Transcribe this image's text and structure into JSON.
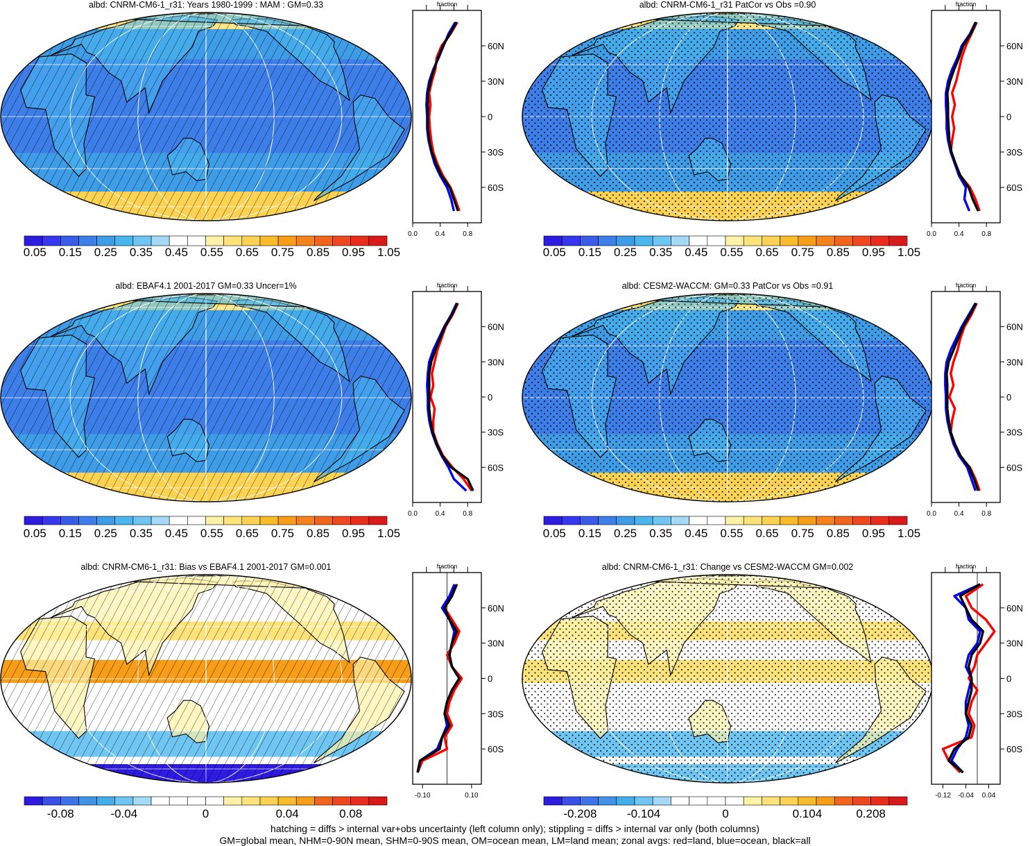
{
  "panels": [
    {
      "title": "albd: CNRM-CM6-1_r31: Years 1980-1999 : MAM : GM=0.33",
      "kind": "abs",
      "overlay": "hatch",
      "colorbar": [
        "0.05",
        "0.15",
        "0.25",
        "0.35",
        "0.45",
        "0.55",
        "0.65",
        "0.75",
        "0.85",
        "0.95",
        "1.05"
      ],
      "zonal": {
        "xlabel": "fraction",
        "xticks": [
          "0.0",
          "0.4",
          "0.8"
        ],
        "xlim": [
          0,
          1
        ],
        "lat_labels": [
          "60N",
          "30N",
          "0",
          "30S",
          "60S"
        ],
        "variant": "m1"
      }
    },
    {
      "title": "albd: CNRM-CM6-1_r31 PatCor vs Obs =0.90",
      "kind": "abs",
      "overlay": "stipple",
      "colorbar": [
        "0.05",
        "0.15",
        "0.25",
        "0.35",
        "0.45",
        "0.55",
        "0.65",
        "0.75",
        "0.85",
        "0.95",
        "1.05"
      ],
      "zonal": {
        "xlabel": "fraction",
        "xticks": [
          "0.0",
          "0.4",
          "0.8"
        ],
        "xlim": [
          0,
          1
        ],
        "lat_labels": [
          "60N",
          "30N",
          "0",
          "30S",
          "60S"
        ],
        "variant": "m2"
      }
    },
    {
      "title": "albd: EBAF4.1 2001-2017 GM=0.33 Uncer=1%",
      "kind": "abs",
      "overlay": "hatch",
      "colorbar": [
        "0.05",
        "0.15",
        "0.25",
        "0.35",
        "0.45",
        "0.55",
        "0.65",
        "0.75",
        "0.85",
        "0.95",
        "1.05"
      ],
      "zonal": {
        "xlabel": "fraction",
        "xticks": [
          "0.0",
          "0.4",
          "0.8"
        ],
        "xlim": [
          0,
          1
        ],
        "lat_labels": [
          "60N",
          "30N",
          "0",
          "30S",
          "60S"
        ],
        "variant": "obs"
      }
    },
    {
      "title": "albd: CESM2-WACCM: GM=0.33 PatCor vs Obs =0.91",
      "kind": "abs",
      "overlay": "stipple",
      "colorbar": [
        "0.05",
        "0.15",
        "0.25",
        "0.35",
        "0.45",
        "0.55",
        "0.65",
        "0.75",
        "0.85",
        "0.95",
        "1.05"
      ],
      "zonal": {
        "xlabel": "fraction",
        "xticks": [
          "0.0",
          "0.4",
          "0.8"
        ],
        "xlim": [
          0,
          1
        ],
        "lat_labels": [
          "60N",
          "30N",
          "0",
          "30S",
          "60S"
        ],
        "variant": "m3"
      }
    },
    {
      "title": "albd: CNRM-CM6-1_r31: Bias vs EBAF4.1 2001-2017 GM=0.001",
      "kind": "bias",
      "overlay": "hatch",
      "colorbar": [
        "-0.08",
        "-0.04",
        "0",
        "0.04",
        "0.08"
      ],
      "zonal": {
        "xlabel": "fraction",
        "xticks": [
          "-0.10",
          "0.10"
        ],
        "xlim": [
          -0.14,
          0.14
        ],
        "lat_labels": [
          "60N",
          "30N",
          "0",
          "30S",
          "60S"
        ],
        "variant": "bias"
      }
    },
    {
      "title": "albd: CNRM-CM6-1_r31: Change vs CESM2-WACCM GM=0.002",
      "kind": "change",
      "overlay": "stipple",
      "colorbar": [
        "-0.208",
        "-0.104",
        "0",
        "0.104",
        "0.208"
      ],
      "zonal": {
        "xlabel": "fraction",
        "xticks": [
          "-0.12",
          "-0.04",
          "0.04"
        ],
        "xlim": [
          -0.16,
          0.08
        ],
        "lat_labels": [
          "60N",
          "30N",
          "0",
          "30S",
          "60S"
        ],
        "variant": "chg"
      }
    }
  ],
  "footnotes": {
    "line1": "hatching = diffs > internal var+obs uncertainty (left column only); stippling = diffs > internal var only (both columns)",
    "line2": "GM=global mean, NHM=0-90N mean, SHM=0-90S mean, OM=ocean mean, LM=land mean; zonal avgs: red=land, blue=ocean, black=all"
  },
  "chart_data": [
    {
      "type": "heatmap",
      "title": "albd: CNRM-CM6-1_r31: Years 1980-1999 : MAM : GM=0.33",
      "global_mean": 0.33,
      "colorbar_levels": [
        0.05,
        0.15,
        0.25,
        0.35,
        0.45,
        0.55,
        0.65,
        0.75,
        0.85,
        0.95,
        1.05
      ]
    },
    {
      "type": "heatmap",
      "title": "albd: CNRM-CM6-1_r31 PatCor vs Obs =0.90",
      "pattern_correlation": 0.9,
      "colorbar_levels": [
        0.05,
        0.15,
        0.25,
        0.35,
        0.45,
        0.55,
        0.65,
        0.75,
        0.85,
        0.95,
        1.05
      ]
    },
    {
      "type": "heatmap",
      "title": "albd: EBAF4.1 2001-2017 GM=0.33 Uncer=1%",
      "global_mean": 0.33,
      "uncertainty": "1%",
      "colorbar_levels": [
        0.05,
        0.15,
        0.25,
        0.35,
        0.45,
        0.55,
        0.65,
        0.75,
        0.85,
        0.95,
        1.05
      ]
    },
    {
      "type": "heatmap",
      "title": "albd: CESM2-WACCM: GM=0.33 PatCor vs Obs =0.91",
      "global_mean": 0.33,
      "pattern_correlation": 0.91,
      "colorbar_levels": [
        0.05,
        0.15,
        0.25,
        0.35,
        0.45,
        0.55,
        0.65,
        0.75,
        0.85,
        0.95,
        1.05
      ]
    },
    {
      "type": "heatmap",
      "title": "albd: CNRM-CM6-1_r31: Bias vs EBAF4.1 2001-2017 GM=0.001",
      "global_mean": 0.001,
      "colorbar_levels": [
        -0.08,
        -0.04,
        0,
        0.04,
        0.08
      ]
    },
    {
      "type": "heatmap",
      "title": "albd: CNRM-CM6-1_r31: Change vs CESM2-WACCM GM=0.002",
      "global_mean": 0.002,
      "colorbar_levels": [
        -0.208,
        -0.104,
        0,
        0.104,
        0.208
      ]
    },
    {
      "type": "line",
      "xlabel": "fraction",
      "xlim": [
        0,
        1
      ],
      "ylim": [
        -90,
        90
      ],
      "lat": [
        80,
        70,
        60,
        50,
        40,
        30,
        20,
        10,
        0,
        -10,
        -20,
        -30,
        -40,
        -50,
        -60,
        -70,
        -80
      ],
      "series": [
        {
          "color": "#ff0000",
          "values": [
            0.65,
            0.55,
            0.42,
            0.35,
            0.33,
            0.28,
            0.24,
            0.26,
            0.24,
            0.25,
            0.27,
            0.3,
            0.36,
            0.44,
            0.55,
            0.62,
            0.68
          ]
        },
        {
          "color": "#0000ff",
          "values": [
            0.62,
            0.52,
            0.45,
            0.38,
            0.3,
            0.24,
            0.21,
            0.2,
            0.21,
            0.21,
            0.23,
            0.27,
            0.32,
            0.4,
            0.5,
            0.56,
            0.6
          ]
        },
        {
          "color": "#000000",
          "values": [
            0.64,
            0.54,
            0.44,
            0.37,
            0.31,
            0.26,
            0.22,
            0.22,
            0.22,
            0.22,
            0.24,
            0.28,
            0.34,
            0.42,
            0.54,
            0.6,
            0.66
          ]
        }
      ]
    },
    {
      "type": "line",
      "xlabel": "fraction",
      "xlim": [
        0,
        1
      ],
      "ylim": [
        -90,
        90
      ],
      "lat": [
        80,
        70,
        60,
        50,
        40,
        30,
        20,
        10,
        0,
        -10,
        -20,
        -30,
        -40,
        -50,
        -60,
        -70,
        -80
      ],
      "series": [
        {
          "color": "#ff0000",
          "values": [
            0.66,
            0.58,
            0.5,
            0.44,
            0.4,
            0.36,
            0.3,
            0.34,
            0.3,
            0.33,
            0.3,
            0.28,
            0.34,
            0.42,
            0.56,
            0.64,
            0.7
          ]
        },
        {
          "color": "#0000ff",
          "values": [
            0.64,
            0.56,
            0.44,
            0.38,
            0.3,
            0.24,
            0.21,
            0.21,
            0.22,
            0.22,
            0.24,
            0.28,
            0.34,
            0.4,
            0.5,
            0.48,
            0.55
          ]
        },
        {
          "color": "#000000",
          "values": [
            0.65,
            0.57,
            0.46,
            0.4,
            0.33,
            0.27,
            0.23,
            0.24,
            0.24,
            0.25,
            0.26,
            0.29,
            0.35,
            0.42,
            0.54,
            0.6,
            0.68
          ]
        }
      ]
    },
    {
      "type": "line",
      "xlabel": "fraction",
      "xlim": [
        0,
        1
      ],
      "ylim": [
        -90,
        90
      ],
      "lat": [
        80,
        70,
        60,
        50,
        40,
        30,
        20,
        10,
        0,
        -10,
        -20,
        -30,
        -40,
        -50,
        -60,
        -70,
        -80
      ],
      "series": [
        {
          "color": "#ff0000",
          "values": [
            0.66,
            0.58,
            0.48,
            0.42,
            0.36,
            0.32,
            0.28,
            0.3,
            0.26,
            0.32,
            0.3,
            0.3,
            0.36,
            0.44,
            0.58,
            0.74,
            0.86
          ]
        },
        {
          "color": "#0000ff",
          "values": [
            0.64,
            0.56,
            0.46,
            0.38,
            0.3,
            0.24,
            0.22,
            0.21,
            0.22,
            0.22,
            0.24,
            0.28,
            0.34,
            0.42,
            0.52,
            0.6,
            0.78
          ]
        },
        {
          "color": "#000000",
          "values": [
            0.65,
            0.57,
            0.47,
            0.4,
            0.33,
            0.27,
            0.24,
            0.24,
            0.24,
            0.24,
            0.26,
            0.29,
            0.35,
            0.43,
            0.56,
            0.8,
            0.88
          ]
        }
      ]
    },
    {
      "type": "line",
      "xlabel": "fraction",
      "xlim": [
        0,
        1
      ],
      "ylim": [
        -90,
        90
      ],
      "lat": [
        80,
        70,
        60,
        50,
        40,
        30,
        20,
        10,
        0,
        -10,
        -20,
        -30,
        -40,
        -50,
        -60,
        -70,
        -80
      ],
      "series": [
        {
          "color": "#ff0000",
          "values": [
            0.66,
            0.58,
            0.48,
            0.42,
            0.38,
            0.32,
            0.28,
            0.32,
            0.26,
            0.34,
            0.3,
            0.28,
            0.34,
            0.4,
            0.56,
            0.64,
            0.7
          ]
        },
        {
          "color": "#0000ff",
          "values": [
            0.64,
            0.54,
            0.44,
            0.36,
            0.28,
            0.22,
            0.2,
            0.2,
            0.21,
            0.21,
            0.23,
            0.27,
            0.32,
            0.4,
            0.52,
            0.58,
            0.64
          ]
        },
        {
          "color": "#000000",
          "values": [
            0.65,
            0.56,
            0.46,
            0.39,
            0.32,
            0.25,
            0.22,
            0.23,
            0.23,
            0.23,
            0.25,
            0.28,
            0.34,
            0.42,
            0.55,
            0.62,
            0.68
          ]
        }
      ]
    },
    {
      "type": "line",
      "xlabel": "fraction",
      "xlim": [
        -0.14,
        0.14
      ],
      "ylim": [
        -90,
        90
      ],
      "lat": [
        80,
        70,
        60,
        50,
        40,
        30,
        20,
        10,
        0,
        -10,
        -20,
        -30,
        -40,
        -50,
        -60,
        -70,
        -80
      ],
      "series": [
        {
          "color": "#ff0000",
          "values": [
            0.04,
            0.02,
            -0.01,
            0.02,
            0.05,
            0.03,
            0.0,
            0.02,
            0.06,
            0.03,
            0.01,
            0.0,
            0.02,
            -0.01,
            0.0,
            -0.1,
            -0.12
          ]
        },
        {
          "color": "#0000ff",
          "values": [
            0.03,
            0.01,
            -0.02,
            0.01,
            0.03,
            0.02,
            0.01,
            0.02,
            0.05,
            0.02,
            0.0,
            -0.01,
            0.0,
            -0.02,
            -0.04,
            -0.11,
            -0.12
          ]
        },
        {
          "color": "#000000",
          "values": [
            0.04,
            0.02,
            -0.01,
            0.01,
            0.04,
            0.02,
            0.01,
            0.02,
            0.05,
            0.02,
            0.0,
            -0.01,
            0.01,
            -0.02,
            -0.03,
            -0.11,
            -0.12
          ]
        }
      ]
    },
    {
      "type": "line",
      "xlabel": "fraction",
      "xlim": [
        -0.16,
        0.08
      ],
      "ylim": [
        -90,
        90
      ],
      "lat": [
        80,
        70,
        60,
        50,
        40,
        30,
        20,
        10,
        0,
        -10,
        -20,
        -30,
        -40,
        -50,
        -60,
        -70,
        -80
      ],
      "series": [
        {
          "color": "#ff0000",
          "values": [
            0.02,
            -0.04,
            -0.02,
            0.03,
            0.06,
            0.03,
            0.0,
            -0.01,
            -0.03,
            0.0,
            -0.02,
            -0.03,
            -0.01,
            -0.02,
            -0.12,
            -0.1,
            -0.06
          ]
        },
        {
          "color": "#0000ff",
          "values": [
            0.01,
            -0.08,
            -0.04,
            -0.03,
            0.01,
            0.0,
            -0.03,
            -0.04,
            -0.02,
            -0.03,
            -0.04,
            -0.04,
            -0.03,
            -0.04,
            -0.07,
            -0.09,
            -0.05
          ]
        },
        {
          "color": "#000000",
          "values": [
            0.01,
            -0.06,
            -0.04,
            -0.02,
            0.02,
            0.01,
            -0.02,
            -0.03,
            -0.02,
            -0.02,
            -0.03,
            -0.04,
            -0.02,
            -0.03,
            -0.08,
            -0.1,
            -0.05
          ]
        }
      ]
    }
  ]
}
